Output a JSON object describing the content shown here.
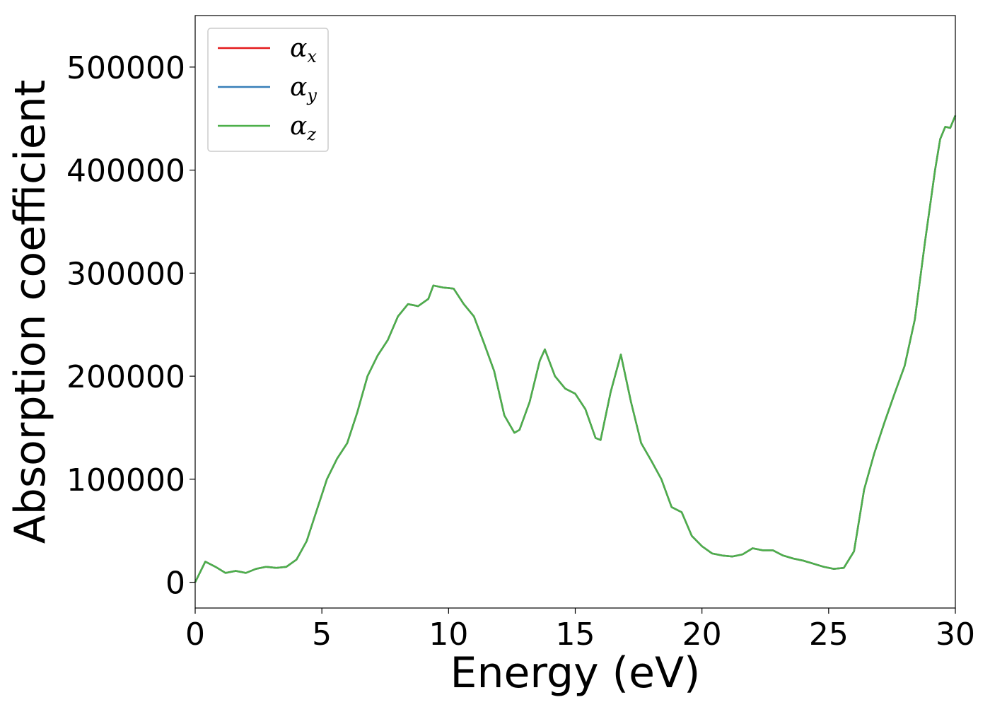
{
  "chart_data": {
    "type": "line",
    "title": "",
    "xlabel": "Energy (eV)",
    "ylabel": "Absorption coefficient",
    "xlim": [
      0,
      30
    ],
    "ylim": [
      -25000,
      550000
    ],
    "xticks": [
      0,
      5,
      10,
      15,
      20,
      25,
      30
    ],
    "xtick_labels": [
      "0",
      "5",
      "10",
      "15",
      "20",
      "25",
      "30"
    ],
    "yticks": [
      0,
      100000,
      200000,
      300000,
      400000,
      500000
    ],
    "ytick_labels": [
      "0",
      "100000",
      "200000",
      "300000",
      "400000",
      "500000"
    ],
    "grid": false,
    "legend_position": "top-left",
    "x": [
      0,
      0.4,
      0.8,
      1.2,
      1.6,
      2.0,
      2.4,
      2.8,
      3.2,
      3.6,
      4.0,
      4.4,
      4.8,
      5.2,
      5.6,
      6.0,
      6.4,
      6.8,
      7.2,
      7.6,
      8.0,
      8.4,
      8.8,
      9.2,
      9.4,
      9.8,
      10.2,
      10.6,
      11.0,
      11.4,
      11.8,
      12.2,
      12.6,
      12.8,
      13.2,
      13.6,
      13.8,
      14.2,
      14.6,
      15.0,
      15.4,
      15.8,
      16.0,
      16.4,
      16.8,
      17.2,
      17.6,
      18.0,
      18.4,
      18.8,
      19.2,
      19.6,
      20.0,
      20.4,
      20.8,
      21.2,
      21.6,
      22.0,
      22.4,
      22.8,
      23.2,
      23.6,
      24.0,
      24.4,
      24.8,
      25.2,
      25.6,
      26.0,
      26.4,
      26.8,
      27.2,
      27.6,
      28.0,
      28.4,
      28.8,
      29.2,
      29.4,
      29.6,
      29.8,
      30.0
    ],
    "series": [
      {
        "name": "α",
        "subscript": "x",
        "color": "#e41a1c",
        "values": [
          0,
          20000,
          15000,
          9000,
          11000,
          9000,
          13000,
          15000,
          14000,
          15000,
          22000,
          40000,
          70000,
          100000,
          120000,
          135000,
          165000,
          200000,
          220000,
          235000,
          258000,
          270000,
          268000,
          275000,
          288000,
          286000,
          285000,
          270000,
          258000,
          232000,
          205000,
          162000,
          145000,
          148000,
          175000,
          215000,
          226000,
          200000,
          188000,
          183000,
          168000,
          140000,
          138000,
          185000,
          221000,
          175000,
          135000,
          118000,
          100000,
          73000,
          68000,
          45000,
          35000,
          28000,
          26000,
          25000,
          27000,
          33000,
          31000,
          31000,
          26000,
          23000,
          21000,
          18000,
          15000,
          13000,
          14000,
          30000,
          90000,
          125000,
          155000,
          183000,
          210000,
          255000,
          330000,
          400000,
          430000,
          442000,
          441000,
          453000
        ]
      },
      {
        "name": "α",
        "subscript": "y",
        "color": "#377eb8",
        "values": [
          0,
          20000,
          15000,
          9000,
          11000,
          9000,
          13000,
          15000,
          14000,
          15000,
          22000,
          40000,
          70000,
          100000,
          120000,
          135000,
          165000,
          200000,
          220000,
          235000,
          258000,
          270000,
          268000,
          275000,
          288000,
          286000,
          285000,
          270000,
          258000,
          232000,
          205000,
          162000,
          145000,
          148000,
          175000,
          215000,
          226000,
          200000,
          188000,
          183000,
          168000,
          140000,
          138000,
          185000,
          221000,
          175000,
          135000,
          118000,
          100000,
          73000,
          68000,
          45000,
          35000,
          28000,
          26000,
          25000,
          27000,
          33000,
          31000,
          31000,
          26000,
          23000,
          21000,
          18000,
          15000,
          13000,
          14000,
          30000,
          90000,
          125000,
          155000,
          183000,
          210000,
          255000,
          330000,
          400000,
          430000,
          442000,
          441000,
          453000
        ]
      },
      {
        "name": "α",
        "subscript": "z",
        "color": "#4daf4a",
        "values": [
          0,
          20000,
          15000,
          9000,
          11000,
          9000,
          13000,
          15000,
          14000,
          15000,
          22000,
          40000,
          70000,
          100000,
          120000,
          135000,
          165000,
          200000,
          220000,
          235000,
          258000,
          270000,
          268000,
          275000,
          288000,
          286000,
          285000,
          270000,
          258000,
          232000,
          205000,
          162000,
          145000,
          148000,
          175000,
          215000,
          226000,
          200000,
          188000,
          183000,
          168000,
          140000,
          138000,
          185000,
          221000,
          175000,
          135000,
          118000,
          100000,
          73000,
          68000,
          45000,
          35000,
          28000,
          26000,
          25000,
          27000,
          33000,
          31000,
          31000,
          26000,
          23000,
          21000,
          18000,
          15000,
          13000,
          14000,
          30000,
          90000,
          125000,
          155000,
          183000,
          210000,
          255000,
          330000,
          400000,
          430000,
          442000,
          441000,
          453000
        ]
      }
    ]
  }
}
